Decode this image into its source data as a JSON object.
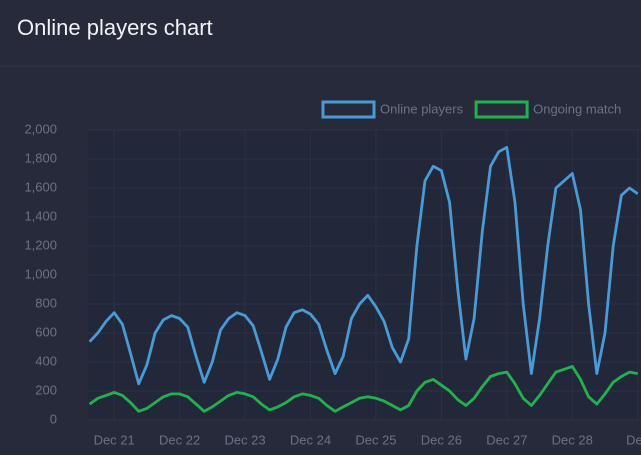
{
  "chart_data": {
    "type": "line",
    "title": "Online players chart",
    "x": [
      20.625,
      20.75,
      20.875,
      21,
      21.125,
      21.25,
      21.375,
      21.5,
      21.625,
      21.75,
      21.875,
      22,
      22.125,
      22.25,
      22.375,
      22.5,
      22.625,
      22.75,
      22.875,
      23,
      23.125,
      23.25,
      23.375,
      23.5,
      23.625,
      23.75,
      23.875,
      24,
      24.125,
      24.25,
      24.375,
      24.5,
      24.625,
      24.75,
      24.875,
      25,
      25.125,
      25.25,
      25.375,
      25.5,
      25.625,
      25.75,
      25.875,
      26,
      26.125,
      26.25,
      26.375,
      26.5,
      26.625,
      26.75,
      26.875,
      27,
      27.125,
      27.25,
      27.375,
      27.5,
      27.625,
      27.75,
      27.875,
      28,
      28.125,
      28.25,
      28.375,
      28.5,
      28.625,
      28.75,
      28.875,
      29
    ],
    "series": [
      {
        "name": "Online players",
        "color": "#4a9ad6",
        "values": [
          540,
          600,
          680,
          740,
          660,
          460,
          250,
          380,
          600,
          690,
          720,
          700,
          640,
          440,
          260,
          400,
          620,
          700,
          740,
          720,
          650,
          470,
          280,
          420,
          640,
          740,
          760,
          730,
          660,
          480,
          320,
          440,
          700,
          800,
          860,
          780,
          680,
          500,
          400,
          560,
          1200,
          1650,
          1750,
          1720,
          1500,
          900,
          420,
          700,
          1300,
          1750,
          1850,
          1880,
          1500,
          800,
          320,
          700,
          1200,
          1600,
          1650,
          1700,
          1450,
          800,
          320,
          600,
          1200,
          1550,
          1600,
          1560
        ]
      },
      {
        "name": "Ongoing match",
        "color": "#22b14c",
        "values": [
          110,
          150,
          170,
          190,
          170,
          120,
          60,
          80,
          120,
          160,
          180,
          180,
          160,
          110,
          60,
          90,
          130,
          170,
          190,
          180,
          160,
          110,
          70,
          90,
          120,
          160,
          180,
          170,
          150,
          100,
          60,
          90,
          120,
          150,
          160,
          150,
          130,
          100,
          70,
          100,
          200,
          260,
          280,
          240,
          200,
          140,
          100,
          150,
          230,
          300,
          320,
          330,
          250,
          150,
          100,
          170,
          250,
          330,
          350,
          370,
          280,
          160,
          110,
          180,
          260,
          300,
          330,
          320
        ]
      }
    ],
    "xlim": [
      20.6,
      29.05
    ],
    "xticks": [
      {
        "value": 21,
        "label": "Dec 21"
      },
      {
        "value": 22,
        "label": "Dec 22"
      },
      {
        "value": 23,
        "label": "Dec 23"
      },
      {
        "value": 24,
        "label": "Dec 24"
      },
      {
        "value": 25,
        "label": "Dec 25"
      },
      {
        "value": 26,
        "label": "Dec 26"
      },
      {
        "value": 27,
        "label": "Dec 27"
      },
      {
        "value": 28,
        "label": "Dec 28"
      },
      {
        "value": 29,
        "label": "Dec"
      }
    ],
    "ylim": [
      0,
      2000
    ],
    "yticks": [
      0,
      200,
      400,
      600,
      800,
      {
        "value": 1000,
        "label": "1,000"
      },
      {
        "value": 1200,
        "label": "1,200"
      },
      {
        "value": 1400,
        "label": "1,400"
      },
      {
        "value": 1600,
        "label": "1,600"
      },
      {
        "value": 1800,
        "label": "1,800"
      },
      {
        "value": 2000,
        "label": "2,000"
      }
    ],
    "grid": true
  }
}
